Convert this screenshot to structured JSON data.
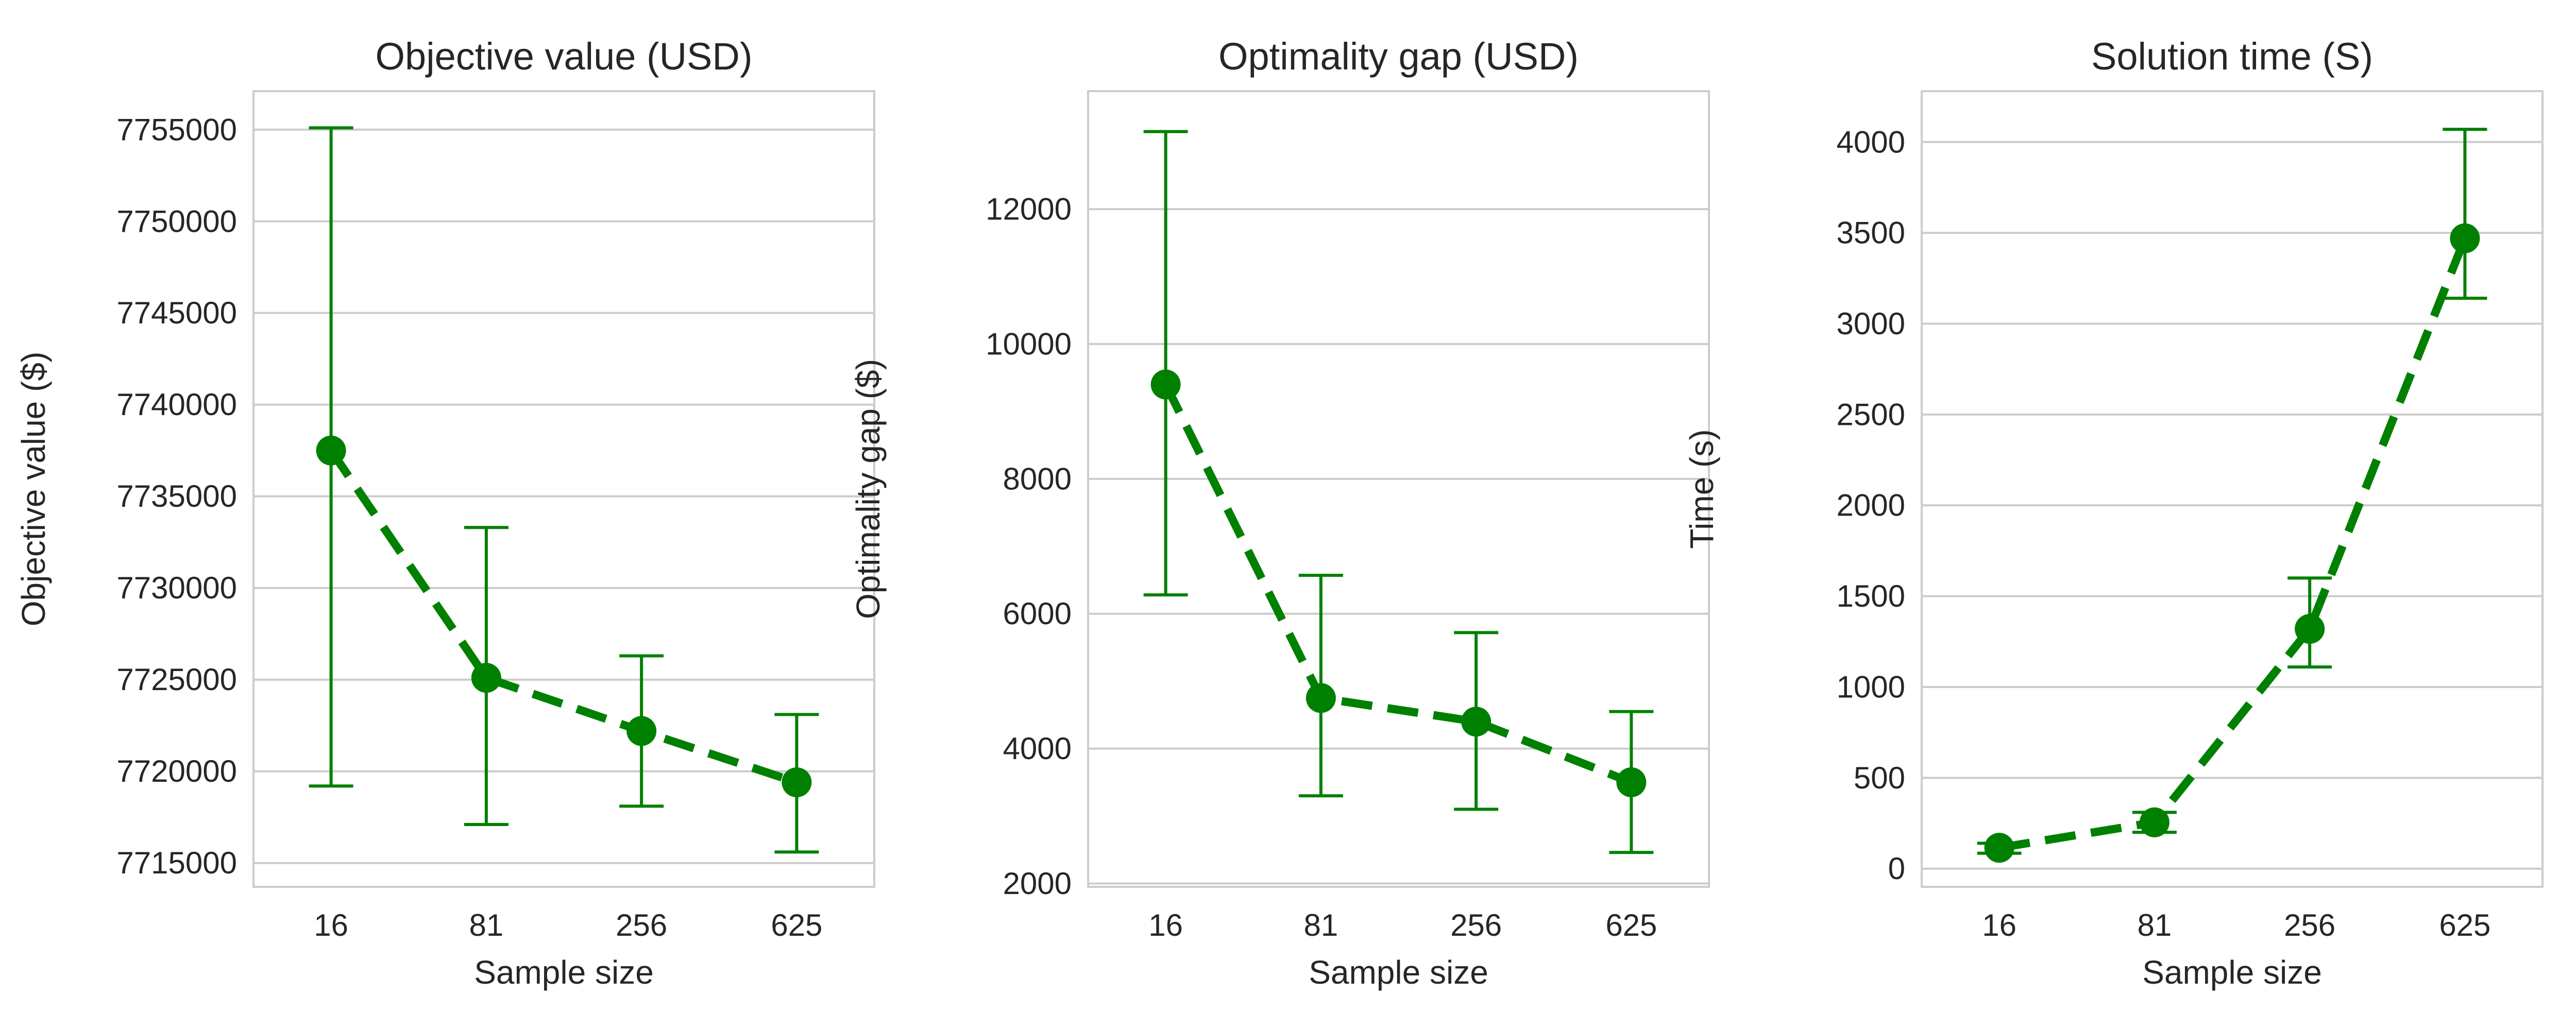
{
  "chart_data": [
    {
      "type": "line",
      "title": "Objective value (USD)",
      "xlabel": "Sample size",
      "ylabel": "Objective value ($)",
      "categories": [
        "16",
        "81",
        "256",
        "625"
      ],
      "ylim": [
        7713700,
        7757100
      ],
      "yticks": [
        7715000,
        7720000,
        7725000,
        7730000,
        7735000,
        7740000,
        7745000,
        7750000,
        7755000
      ],
      "ytick_labels": [
        "7715000",
        "7720000",
        "7725000",
        "7730000",
        "7735000",
        "7740000",
        "7745000",
        "7750000",
        "7755000"
      ],
      "series": [
        {
          "values": [
            7737500,
            7725100,
            7722200,
            7719400
          ],
          "err_low": [
            7719200,
            7717100,
            7718100,
            7715600
          ],
          "err_high": [
            7755100,
            7733300,
            7726300,
            7723100
          ],
          "color": "#008000"
        }
      ],
      "grid": "y",
      "linestyle": "dashed"
    },
    {
      "type": "line",
      "title": "Optimality gap (USD)",
      "xlabel": "Sample size",
      "ylabel": "Optimality gap ($)",
      "categories": [
        "16",
        "81",
        "256",
        "625"
      ],
      "ylim": [
        1950,
        13750
      ],
      "yticks": [
        2000,
        4000,
        6000,
        8000,
        10000,
        12000
      ],
      "ytick_labels": [
        "2000",
        "4000",
        "6000",
        "8000",
        "10000",
        "12000"
      ],
      "series": [
        {
          "values": [
            9400,
            4750,
            4400,
            3500
          ],
          "err_low": [
            6280,
            3300,
            3100,
            2460
          ],
          "err_high": [
            13150,
            6570,
            5720,
            4550
          ],
          "color": "#008000"
        }
      ],
      "grid": "y",
      "linestyle": "dashed"
    },
    {
      "type": "line",
      "title": "Solution time (S)",
      "xlabel": "Sample size",
      "ylabel": "Time (s)",
      "categories": [
        "16",
        "81",
        "256",
        "625"
      ],
      "ylim": [
        -100,
        4280
      ],
      "yticks": [
        0,
        500,
        1000,
        1500,
        2000,
        2500,
        3000,
        3500,
        4000
      ],
      "ytick_labels": [
        "0",
        "500",
        "1000",
        "1500",
        "2000",
        "2500",
        "3000",
        "3500",
        "4000"
      ],
      "series": [
        {
          "values": [
            115,
            255,
            1320,
            3470
          ],
          "err_low": [
            85,
            200,
            1110,
            3140
          ],
          "err_high": [
            140,
            310,
            1600,
            4070
          ],
          "color": "#008000"
        }
      ],
      "grid": "y",
      "linestyle": "dashed"
    }
  ]
}
